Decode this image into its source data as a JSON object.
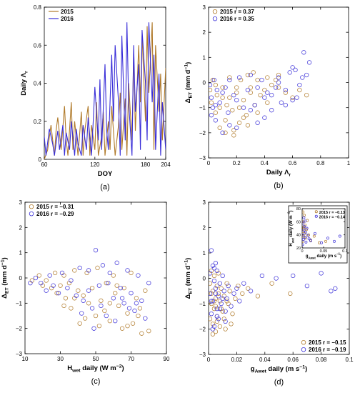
{
  "colors": {
    "y2015": "#b07a2a",
    "y2016": "#3a2fd8",
    "axis": "#000000"
  },
  "chart_data": [
    {
      "id": "a",
      "type": "line",
      "subplot_label": "(a)",
      "xlabel": "DOY",
      "ylabel": "Daily Λr",
      "xlim": [
        60,
        204
      ],
      "ylim": [
        0,
        0.8
      ],
      "xticks": [
        60,
        120,
        180,
        204
      ],
      "yticks": [
        0,
        0.2,
        0.4,
        0.6,
        0.8
      ],
      "legend": "top-left",
      "series": [
        {
          "name": "2015",
          "color_key": "y2015",
          "x": [
            60,
            64,
            68,
            72,
            74,
            76,
            80,
            84,
            86,
            88,
            92,
            94,
            96,
            100,
            104,
            106,
            108,
            112,
            114,
            116,
            120,
            122,
            124,
            128,
            130,
            132,
            136,
            138,
            140,
            144,
            148,
            150,
            152,
            156,
            158,
            160,
            164,
            166,
            168,
            172,
            174,
            176,
            180,
            182,
            184,
            188,
            190,
            192,
            196,
            198,
            200,
            204
          ],
          "y": [
            0,
            0.05,
            0.18,
            0.02,
            0.15,
            0.22,
            0.05,
            0.28,
            0.1,
            0.02,
            0.3,
            0.05,
            0.2,
            0.02,
            0.25,
            0.02,
            0.15,
            0.28,
            0.02,
            0.18,
            0.05,
            0.3,
            0.02,
            0.12,
            0.25,
            0.02,
            0.2,
            0.05,
            0.28,
            0.02,
            0.18,
            0.35,
            0.05,
            0.32,
            0.02,
            0.4,
            0.1,
            0.55,
            0.15,
            0.6,
            0.3,
            0.65,
            0.2,
            0.7,
            0.35,
            0.72,
            0.05,
            0.6,
            0.25,
            0.45,
            0.1,
            0.48
          ]
        },
        {
          "name": "2016",
          "color_key": "y2016",
          "x": [
            60,
            62,
            66,
            70,
            72,
            76,
            78,
            82,
            84,
            86,
            90,
            92,
            96,
            98,
            100,
            104,
            106,
            110,
            112,
            116,
            118,
            120,
            124,
            126,
            128,
            132,
            134,
            136,
            140,
            142,
            144,
            148,
            150,
            152,
            156,
            158,
            160,
            164,
            166,
            168,
            172,
            174,
            176,
            180,
            182,
            184,
            188,
            190,
            192,
            196,
            198,
            200,
            204
          ],
          "y": [
            0.12,
            0.02,
            0.16,
            0.08,
            0.02,
            0.15,
            0.05,
            0.18,
            0.02,
            0.14,
            0.05,
            0.2,
            0.02,
            0.16,
            0.08,
            0.02,
            0.18,
            0.05,
            0.22,
            0.02,
            0.2,
            0.38,
            0.1,
            0.42,
            0.05,
            0.5,
            0.15,
            0.05,
            0.55,
            0.2,
            0.6,
            0.3,
            0.02,
            0.65,
            0.1,
            0.72,
            0.3,
            0.02,
            0.6,
            0.25,
            0.5,
            0.05,
            0.68,
            0.4,
            0.1,
            0.72,
            0.3,
            0.55,
            0.05,
            0.45,
            0.02,
            0.3,
            0.05
          ]
        }
      ]
    },
    {
      "id": "b",
      "type": "scatter",
      "subplot_label": "(b)",
      "xlabel": "Daily Λr",
      "ylabel": "ΔET (mm d⁻¹)",
      "xlim": [
        0,
        1
      ],
      "ylim": [
        -3,
        3
      ],
      "xticks": [
        0,
        0.2,
        0.4,
        0.6,
        0.8,
        1
      ],
      "yticks": [
        -3,
        -2,
        -1,
        0,
        1,
        2,
        3
      ],
      "legend": "top-left",
      "series": [
        {
          "name": "2015 r = 0.37",
          "color_key": "y2015",
          "x": [
            0.01,
            0.02,
            0.03,
            0.05,
            0.06,
            0.08,
            0.1,
            0.12,
            0.13,
            0.15,
            0.17,
            0.18,
            0.2,
            0.22,
            0.23,
            0.25,
            0.27,
            0.28,
            0.3,
            0.32,
            0.33,
            0.35,
            0.37,
            0.4,
            0.42,
            0.45,
            0.48,
            0.5,
            0.55,
            0.6,
            0.65,
            0.7,
            0.15,
            0.18,
            0.22,
            0.25,
            0.1,
            0.08,
            0.3,
            0.2,
            0.12,
            0.28,
            0.05,
            0.35,
            0.42,
            0.5
          ],
          "y": [
            -0.3,
            -0.8,
            0.1,
            -1.2,
            -0.5,
            -1.8,
            -0.2,
            -1.5,
            -0.9,
            0.2,
            -1.1,
            -2.1,
            -0.4,
            -1.6,
            0.1,
            -0.7,
            -1.3,
            0.3,
            -0.2,
            0.4,
            -0.9,
            0.1,
            -0.5,
            -0.3,
            0.2,
            -0.1,
            0.1,
            -0.2,
            -0.4,
            -0.6,
            -0.3,
            -0.5,
            -0.6,
            -1.9,
            -1.0,
            -1.4,
            -0.6,
            -1.0,
            -0.4,
            -0.2,
            -2.0,
            -1.7,
            -0.1,
            -1.2,
            -0.8,
            0.3
          ]
        },
        {
          "name": "2016 r = 0.35",
          "color_key": "y2016",
          "x": [
            0.01,
            0.02,
            0.03,
            0.04,
            0.05,
            0.06,
            0.08,
            0.1,
            0.12,
            0.14,
            0.15,
            0.18,
            0.2,
            0.22,
            0.25,
            0.28,
            0.3,
            0.33,
            0.35,
            0.38,
            0.4,
            0.42,
            0.45,
            0.48,
            0.5,
            0.52,
            0.55,
            0.58,
            0.6,
            0.62,
            0.65,
            0.68,
            0.7,
            0.72,
            0.02,
            0.05,
            0.1,
            0.15,
            0.2,
            0.3,
            0.35,
            0.4,
            0.45,
            0.5,
            0.55,
            0.6,
            0.63,
            0.67
          ],
          "y": [
            -0.1,
            -0.6,
            -1.0,
            0.1,
            -1.5,
            -0.3,
            -0.8,
            -2.0,
            -0.2,
            -1.2,
            0.1,
            -0.5,
            -1.8,
            0.2,
            -1.0,
            -0.3,
            0.3,
            -0.9,
            -1.6,
            0.1,
            -0.6,
            -0.4,
            -1.1,
            -0.2,
            0.2,
            -0.8,
            -0.3,
            0.4,
            -0.7,
            0.5,
            -0.1,
            1.2,
            0.3,
            0.8,
            -1.3,
            -0.9,
            -0.4,
            -1.7,
            -0.7,
            -1.1,
            -0.2,
            -1.4,
            -0.5,
            0.0,
            -0.9,
            0.6,
            -0.6,
            0.2
          ]
        }
      ]
    },
    {
      "id": "c",
      "type": "scatter",
      "subplot_label": "(c)",
      "xlabel": "Hwet daily  (W m⁻²)",
      "ylabel": "ΔET (mm d⁻¹)",
      "xlim": [
        10,
        90
      ],
      "ylim": [
        -3,
        3
      ],
      "xticks": [
        10,
        30,
        50,
        70,
        90
      ],
      "yticks": [
        -3,
        -2,
        -1,
        0,
        1,
        2,
        3
      ],
      "legend": "top-left",
      "series": [
        {
          "name": "2015 r = −0.31",
          "color_key": "y2015",
          "x": [
            14,
            18,
            20,
            22,
            25,
            27,
            28,
            30,
            32,
            33,
            35,
            36,
            38,
            40,
            41,
            43,
            45,
            46,
            48,
            50,
            51,
            53,
            55,
            56,
            58,
            60,
            61,
            63,
            65,
            66,
            68,
            70,
            71,
            73,
            75,
            76,
            78,
            80,
            32,
            38,
            44,
            52,
            58,
            62,
            68,
            74
          ],
          "y": [
            -0.1,
            0.1,
            -0.3,
            -0.1,
            -0.4,
            0.2,
            -0.6,
            -0.3,
            0.1,
            -0.8,
            -0.2,
            -1.2,
            0.3,
            -0.5,
            -1.8,
            -0.7,
            0.2,
            -1.0,
            -0.4,
            -1.5,
            0.4,
            -0.9,
            -1.3,
            -0.2,
            -1.7,
            0.1,
            -0.6,
            -1.1,
            -2.0,
            -0.4,
            -1.4,
            0.2,
            -1.8,
            -0.8,
            -1.2,
            -2.2,
            -0.5,
            -2.1,
            -1.1,
            -0.8,
            -1.6,
            -1.9,
            -1.0,
            -0.3,
            -1.9,
            -1.5
          ]
        },
        {
          "name": "2016 r = −0.29",
          "color_key": "y2016",
          "x": [
            13,
            16,
            19,
            22,
            24,
            26,
            29,
            31,
            34,
            36,
            39,
            41,
            43,
            46,
            48,
            50,
            52,
            54,
            56,
            58,
            60,
            62,
            64,
            66,
            68,
            70,
            72,
            74,
            76,
            78,
            80,
            42,
            46,
            49,
            53,
            57,
            61,
            65,
            69,
            73
          ],
          "y": [
            -0.2,
            0.0,
            -0.2,
            -0.5,
            0.1,
            -0.3,
            -0.6,
            0.2,
            -0.4,
            -0.1,
            -0.7,
            0.4,
            -0.9,
            0.3,
            -1.2,
            1.1,
            -0.3,
            0.5,
            -1.5,
            0.2,
            -0.8,
            0.6,
            -0.4,
            -1.0,
            0.3,
            -0.6,
            -1.3,
            0.1,
            -0.9,
            -1.6,
            -0.2,
            -1.4,
            -0.5,
            -2.0,
            -1.1,
            -0.2,
            -1.7,
            -0.8,
            -1.2,
            -1.0
          ]
        }
      ]
    },
    {
      "id": "d",
      "type": "scatter",
      "subplot_label": "(d)",
      "xlabel": "gAwet daily (m s⁻¹)",
      "ylabel": "ΔET (mm d⁻¹)",
      "xlim": [
        0,
        0.1
      ],
      "ylim": [
        -3,
        3
      ],
      "xticks": [
        0,
        0.02,
        0.04,
        0.06,
        0.08,
        0.1
      ],
      "yticks": [
        -3,
        -2,
        -1,
        0,
        1,
        2,
        3
      ],
      "legend": "bottom-right",
      "series": [
        {
          "name": "2015 r = −0.15",
          "color_key": "y2015",
          "x": [
            0.001,
            0.002,
            0.002,
            0.003,
            0.003,
            0.004,
            0.004,
            0.005,
            0.005,
            0.006,
            0.006,
            0.007,
            0.008,
            0.008,
            0.009,
            0.01,
            0.011,
            0.012,
            0.013,
            0.014,
            0.015,
            0.017,
            0.019,
            0.021,
            0.024,
            0.028,
            0.035,
            0.045,
            0.058,
            0.001,
            0.002,
            0.003,
            0.004,
            0.005,
            0.006,
            0.007,
            0.009,
            0.011,
            0.013,
            0.016
          ],
          "y": [
            -0.2,
            -1.0,
            0.3,
            -1.8,
            -0.5,
            -1.2,
            0.1,
            -2.1,
            -0.8,
            -0.3,
            -1.5,
            0.2,
            -0.9,
            -1.9,
            -0.4,
            -1.3,
            -0.7,
            -2.0,
            -0.2,
            -1.0,
            -0.5,
            -1.4,
            -0.8,
            -0.3,
            -0.6,
            -0.4,
            -0.7,
            -0.2,
            -0.6,
            -1.6,
            -0.6,
            -2.2,
            -0.9,
            -1.1,
            -1.7,
            -0.6,
            -1.2,
            -1.6,
            -0.9,
            -1.8
          ]
        },
        {
          "name": "2016 r = −0.19",
          "color_key": "y2016",
          "x": [
            0.001,
            0.001,
            0.002,
            0.002,
            0.003,
            0.003,
            0.004,
            0.004,
            0.005,
            0.005,
            0.006,
            0.006,
            0.007,
            0.007,
            0.008,
            0.009,
            0.01,
            0.011,
            0.012,
            0.013,
            0.014,
            0.016,
            0.018,
            0.02,
            0.022,
            0.025,
            0.03,
            0.038,
            0.048,
            0.06,
            0.07,
            0.08,
            0.087,
            0.09,
            0.002,
            0.003,
            0.004,
            0.005,
            0.006,
            0.008,
            0.01,
            0.012
          ],
          "y": [
            0.2,
            -0.6,
            1.1,
            -1.4,
            0.5,
            -0.9,
            -0.1,
            -1.9,
            0.6,
            -0.4,
            -1.2,
            0.3,
            -0.7,
            -1.6,
            -0.2,
            -1.0,
            0.1,
            -0.5,
            -1.3,
            -0.8,
            -0.3,
            -1.1,
            -0.6,
            -0.4,
            -0.9,
            -0.2,
            -0.5,
            0.1,
            0.0,
            0.1,
            -0.3,
            0.2,
            -0.5,
            -0.4,
            -0.9,
            -2.0,
            0.4,
            -0.6,
            -1.5,
            -1.2,
            -0.8,
            -1.7
          ]
        }
      ],
      "inset": {
        "xlabel": "gAwet daily (m s⁻¹)",
        "ylabel": "Hwet daily (W m⁻²)",
        "xlim": [
          0,
          0.1
        ],
        "ylim": [
          20,
          80
        ],
        "xticks": [
          0,
          0.05,
          0.1
        ],
        "yticks": [
          20,
          40,
          60,
          80
        ],
        "legend": "top-right",
        "series": [
          {
            "name": "2015 r = −0.13",
            "color_key": "y2015",
            "x": [
              0.001,
              0.002,
              0.003,
              0.003,
              0.004,
              0.005,
              0.006,
              0.007,
              0.008,
              0.01,
              0.012,
              0.015,
              0.02,
              0.028,
              0.04,
              0.055,
              0.002,
              0.004
            ],
            "y": [
              30,
              45,
              60,
              38,
              52,
              70,
              42,
              55,
              35,
              48,
              62,
              40,
              32,
              38,
              28,
              30,
              75,
              50
            ]
          },
          {
            "name": "2016 r = −0.14",
            "color_key": "y2016",
            "x": [
              0.001,
              0.002,
              0.002,
              0.003,
              0.004,
              0.004,
              0.005,
              0.006,
              0.007,
              0.008,
              0.009,
              0.011,
              0.013,
              0.016,
              0.02,
              0.03,
              0.045,
              0.06,
              0.075,
              0.088
            ],
            "y": [
              25,
              40,
              58,
              33,
              47,
              66,
              53,
              36,
              61,
              44,
              29,
              50,
              39,
              34,
              31,
              42,
              28,
              35,
              30,
              38
            ]
          }
        ]
      }
    }
  ]
}
